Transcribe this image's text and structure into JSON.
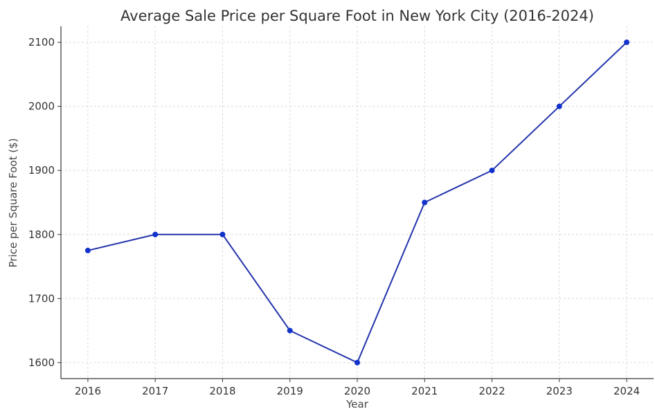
{
  "chart_data": {
    "type": "line",
    "title": "Average Sale Price per Square Foot in New York City (2016-2024)",
    "xlabel": "Year",
    "ylabel": "Price per Square Foot ($)",
    "x": [
      2016,
      2017,
      2018,
      2019,
      2020,
      2021,
      2022,
      2023,
      2024
    ],
    "series": [
      {
        "values": [
          1775,
          1800,
          1800,
          1650,
          1600,
          1850,
          1900,
          2000,
          2100
        ],
        "color": "#1133cc"
      }
    ],
    "xticks": [
      "2016",
      "2017",
      "2018",
      "2019",
      "2020",
      "2021",
      "2022",
      "2023",
      "2024"
    ],
    "yticks": [
      1600,
      1700,
      1800,
      1900,
      2000,
      2100
    ],
    "xlim": [
      2015.6,
      2024.4
    ],
    "ylim": [
      1575,
      2125
    ],
    "grid": true,
    "marker": "circle"
  }
}
